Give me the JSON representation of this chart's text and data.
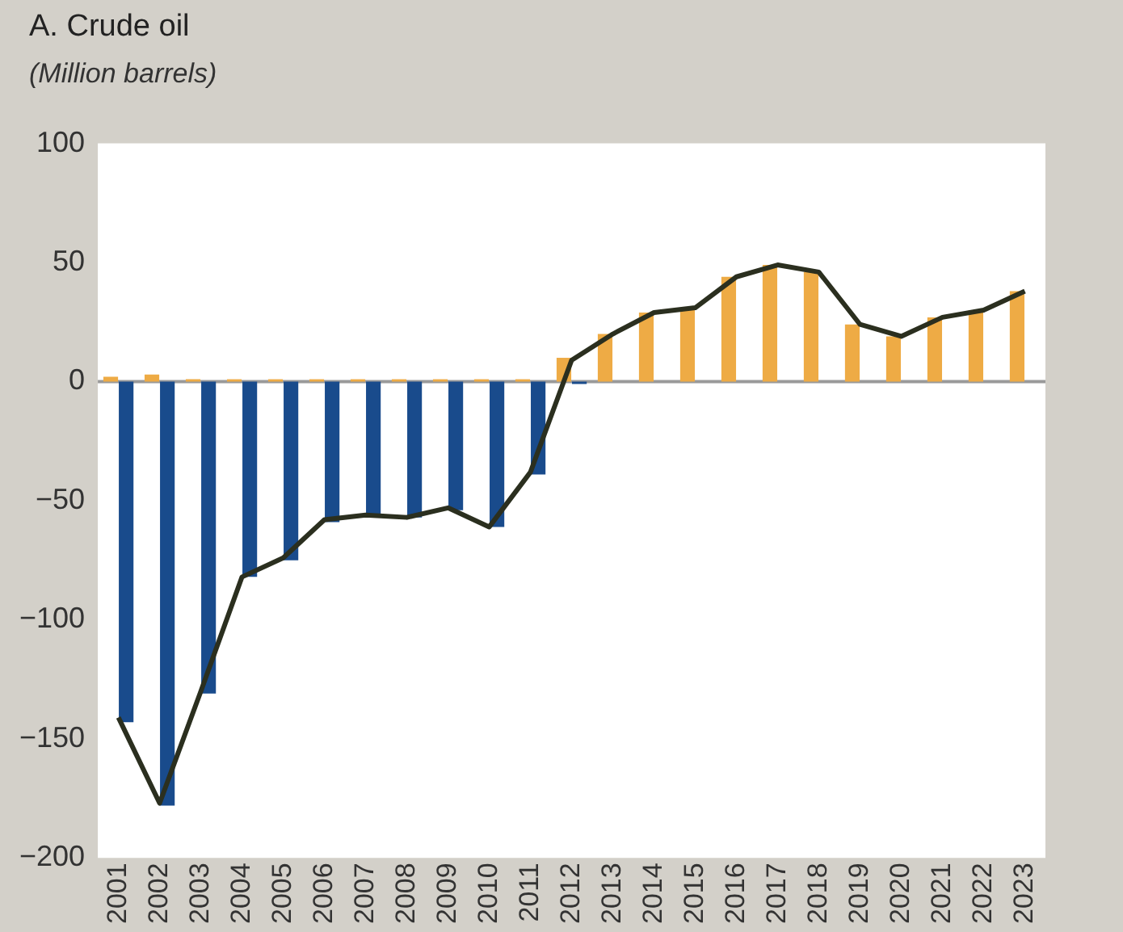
{
  "chart_data": {
    "type": "bar",
    "title": "A. Crude oil",
    "subtitle": "(Million barrels)",
    "categories": [
      "2001",
      "2002",
      "2003",
      "2004",
      "2005",
      "2006",
      "2007",
      "2008",
      "2009",
      "2010",
      "2011",
      "2012",
      "2013",
      "2014",
      "2015",
      "2016",
      "2017",
      "2018",
      "2019",
      "2020",
      "2021",
      "2022",
      "2023"
    ],
    "series": [
      {
        "color": "#eeab45",
        "values": [
          2,
          3,
          1,
          1,
          1,
          1,
          1,
          1,
          1,
          1,
          1,
          10,
          20,
          29,
          31,
          44,
          49,
          46,
          24,
          19,
          27,
          30,
          38
        ]
      },
      {
        "color": "#194b8c",
        "values": [
          -143,
          -178,
          -131,
          -82,
          -75,
          -59,
          -56,
          -57,
          -54,
          -61,
          -39,
          -1,
          0,
          0,
          0,
          0,
          0,
          0,
          0,
          0,
          0,
          0,
          0
        ]
      },
      {
        "type": "line",
        "color": "#2b2f1f",
        "values": [
          -141,
          -177,
          -130,
          -82,
          -74,
          -58,
          -56,
          -57,
          -53,
          -61,
          -38,
          9,
          20,
          29,
          31,
          44,
          49,
          46,
          24,
          19,
          27,
          30,
          38
        ]
      }
    ],
    "ylim": [
      -200,
      100
    ],
    "yticks": [
      -200,
      -150,
      -100,
      -50,
      0,
      50,
      100
    ],
    "ref_lines": [
      {
        "axis": "y",
        "value": 0,
        "color": "#9a9a9a"
      }
    ],
    "grid": false,
    "legend": false,
    "marker": "none"
  }
}
